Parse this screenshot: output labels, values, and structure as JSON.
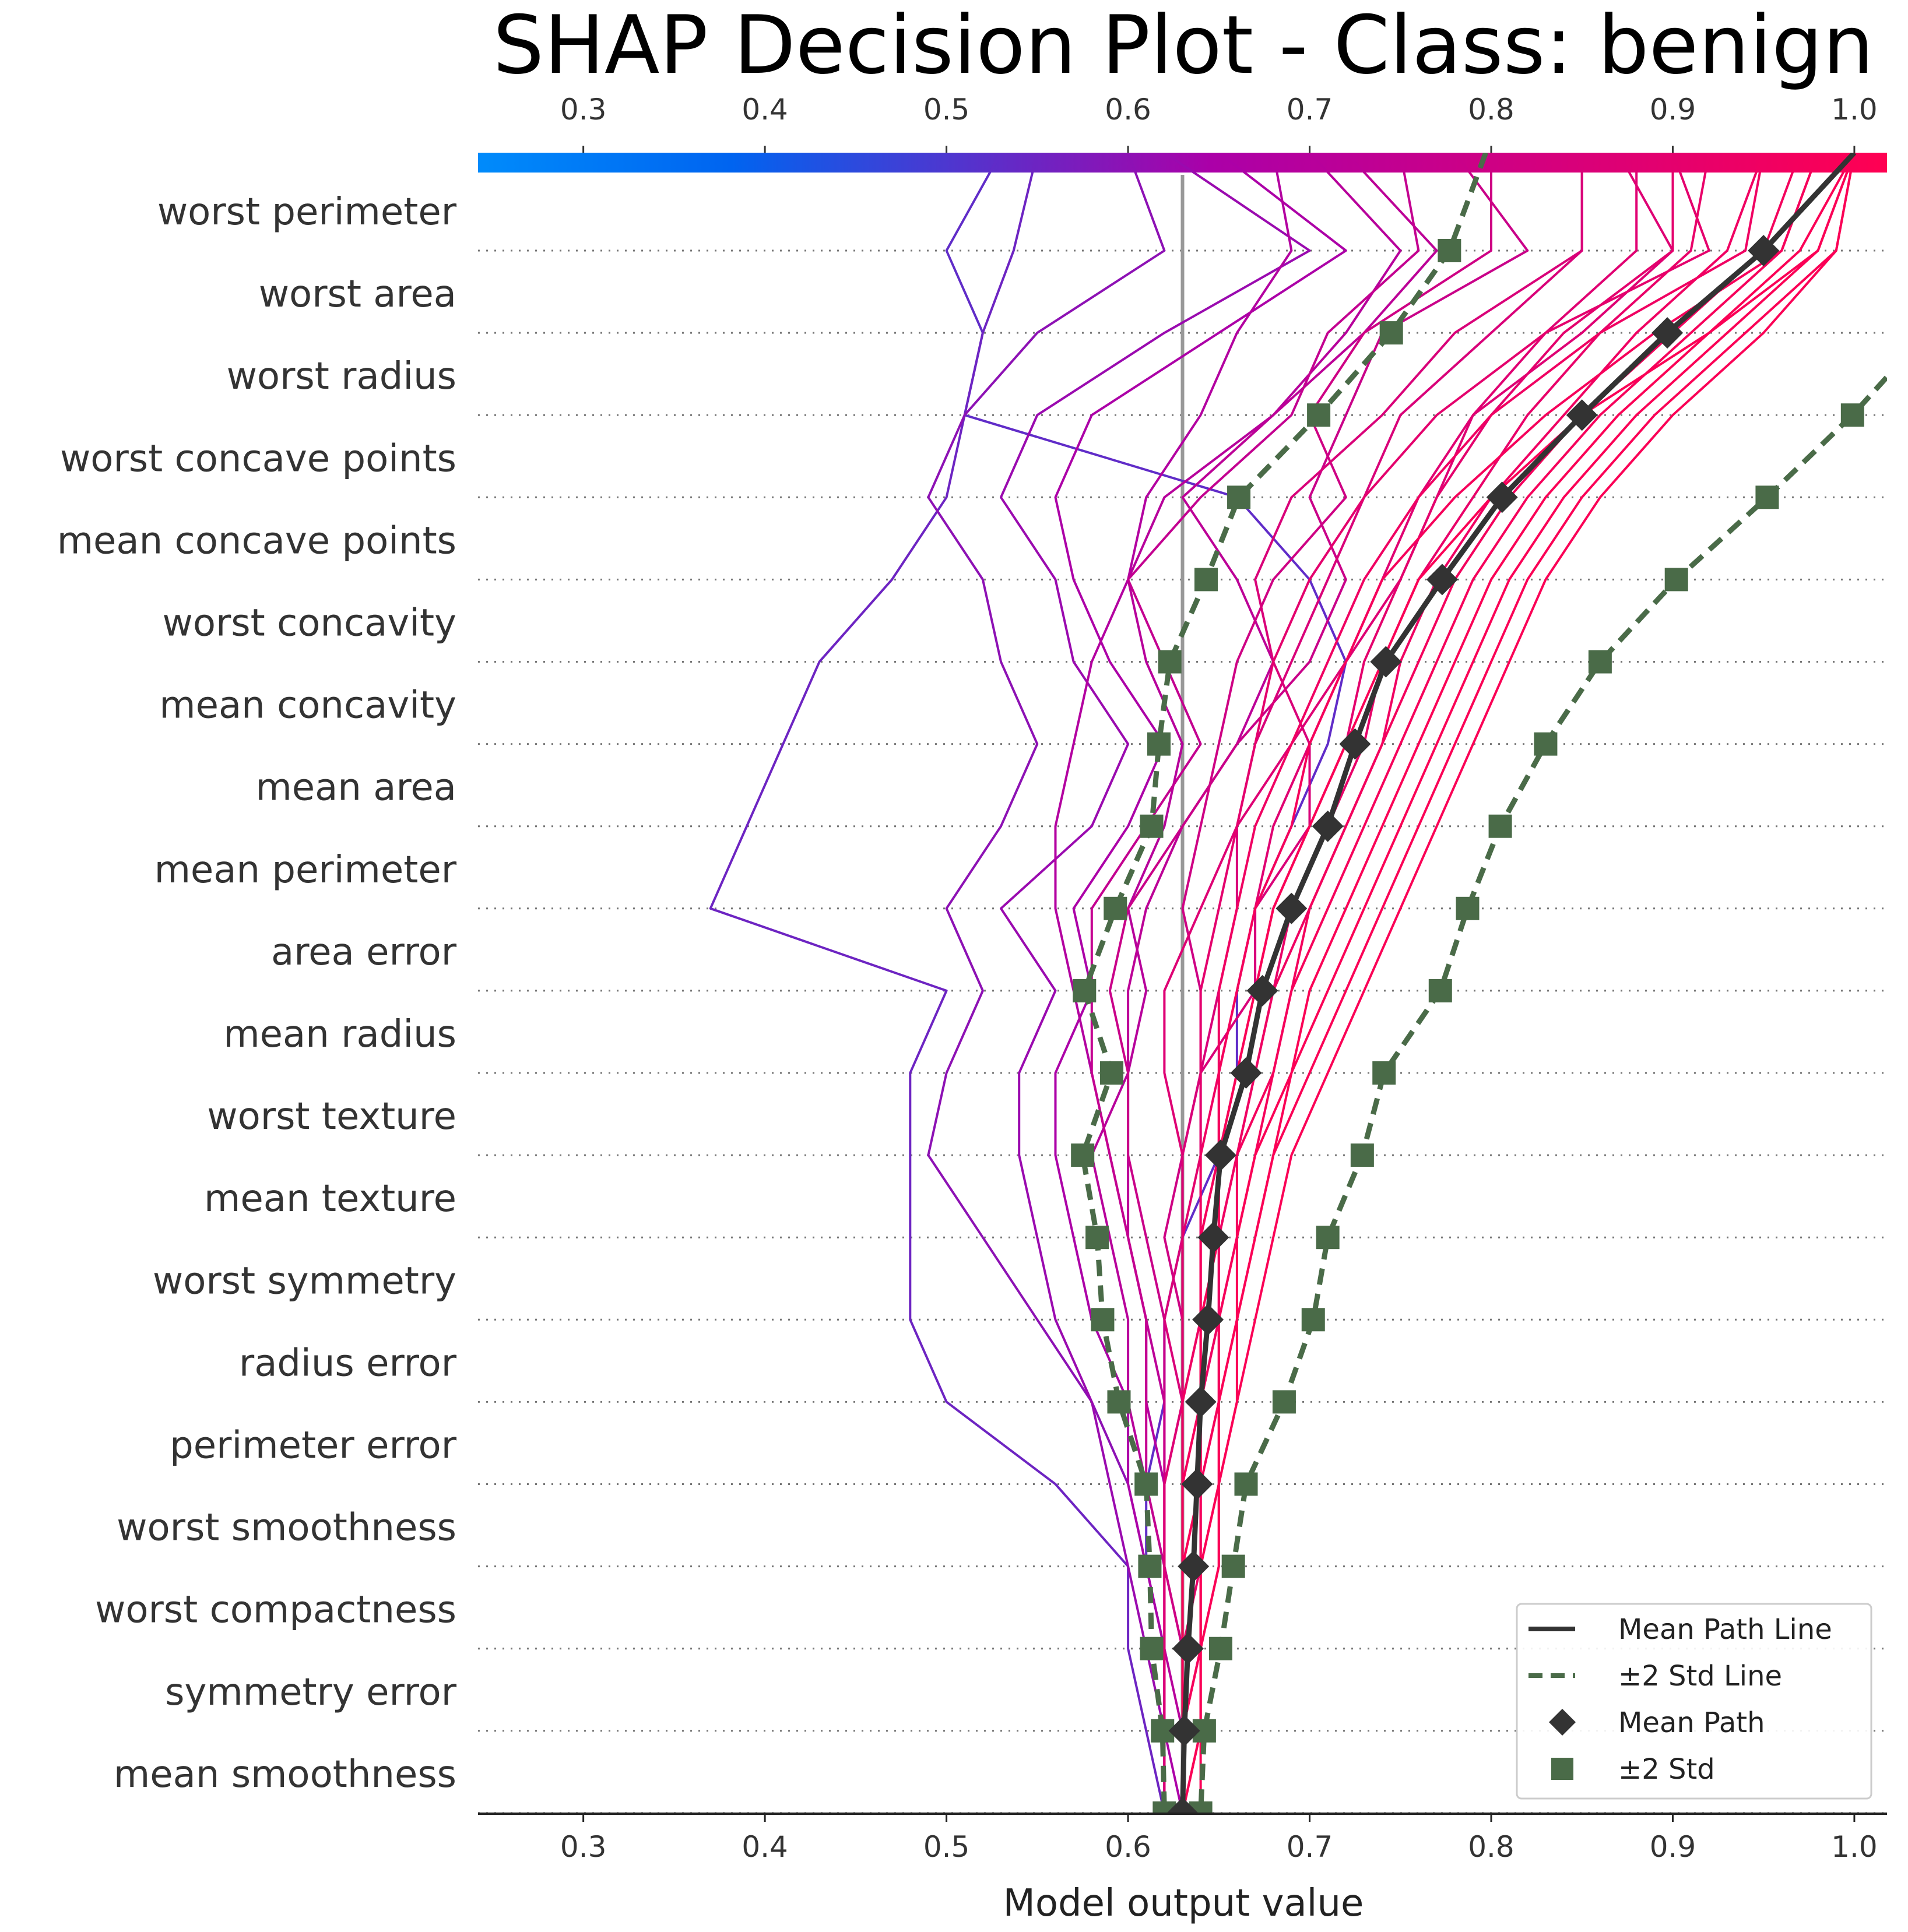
{
  "chart_data": {
    "type": "line",
    "subtype": "shap-decision",
    "title": "SHAP Decision Plot - Class: benign",
    "xlabel": "Model output value",
    "xlim": [
      0.242,
      1.018
    ],
    "xticks": [
      "0.3",
      "0.4",
      "0.5",
      "0.6",
      "0.7",
      "0.8",
      "0.9",
      "1.0"
    ],
    "xtick_values": [
      0.3,
      0.4,
      0.5,
      0.6,
      0.7,
      0.8,
      0.9,
      1.0
    ],
    "base_value": 0.63,
    "colorbar": {
      "position": "top",
      "range": [
        0.242,
        1.018
      ],
      "colors": [
        "#008bfb",
        "#ab00a8",
        "#ff0052"
      ]
    },
    "features": [
      "worst perimeter",
      "worst area",
      "worst radius",
      "worst concave points",
      "mean concave points",
      "worst concavity",
      "mean concavity",
      "mean area",
      "mean perimeter",
      "area error",
      "mean radius",
      "worst texture",
      "mean texture",
      "worst symmetry",
      "radius error",
      "perimeter error",
      "worst smoothness",
      "worst compactness",
      "symmetry error",
      "mean smoothness"
    ],
    "mean_path": [
      0.95,
      0.897,
      0.85,
      0.806,
      0.773,
      0.742,
      0.725,
      0.71,
      0.69,
      0.674,
      0.665,
      0.651,
      0.647,
      0.644,
      0.64,
      0.638,
      0.636,
      0.633,
      0.631,
      0.63
    ],
    "minus_2std": [
      0.777,
      0.745,
      0.705,
      0.661,
      0.643,
      0.623,
      0.617,
      0.613,
      0.593,
      0.576,
      0.591,
      0.575,
      0.583,
      0.586,
      0.595,
      0.61,
      0.612,
      0.613,
      0.619,
      0.62
    ],
    "plus_2std": [
      1.05,
      1.04,
      0.999,
      0.952,
      0.902,
      0.86,
      0.83,
      0.805,
      0.787,
      0.772,
      0.741,
      0.729,
      0.71,
      0.702,
      0.686,
      0.665,
      0.658,
      0.651,
      0.642,
      0.64
    ],
    "legend_position": "lower right",
    "series": [
      {
        "name": "Mean Path Line",
        "style": "solid",
        "color": "#333333"
      },
      {
        "name": "±2 Std Line",
        "style": "dashed",
        "color": "#4a6b48"
      },
      {
        "name": "Mean Path",
        "marker": "diamond",
        "color": "#333333"
      },
      {
        "name": "±2 Std",
        "marker": "square",
        "color": "#4a6b48"
      }
    ],
    "sample_paths": [
      {
        "final": 0.55,
        "values": [
          0.537,
          0.52,
          0.51,
          0.5,
          0.47,
          0.43,
          0.41,
          0.39,
          0.37,
          0.5,
          0.48,
          0.48,
          0.48,
          0.48,
          0.5,
          0.56,
          0.6,
          0.6,
          0.61,
          0.62
        ]
      },
      {
        "final": 0.53,
        "values": [
          0.5,
          0.52,
          0.51,
          0.66,
          0.7,
          0.72,
          0.71,
          0.69,
          0.67,
          0.66,
          0.66,
          0.65,
          0.63,
          0.62,
          0.62,
          0.61,
          0.61,
          0.62,
          0.62,
          0.62
        ]
      },
      {
        "final": 0.6,
        "values": [
          0.62,
          0.55,
          0.51,
          0.49,
          0.52,
          0.53,
          0.55,
          0.53,
          0.5,
          0.52,
          0.5,
          0.49,
          0.52,
          0.55,
          0.58,
          0.6,
          0.61,
          0.62,
          0.62,
          0.62
        ]
      },
      {
        "final": 0.62,
        "values": [
          0.7,
          0.62,
          0.55,
          0.53,
          0.56,
          0.57,
          0.6,
          0.58,
          0.53,
          0.56,
          0.54,
          0.54,
          0.55,
          0.56,
          0.58,
          0.59,
          0.6,
          0.61,
          0.62,
          0.62
        ]
      },
      {
        "final": 0.65,
        "values": [
          0.72,
          0.65,
          0.58,
          0.56,
          0.57,
          0.59,
          0.62,
          0.6,
          0.57,
          0.58,
          0.56,
          0.56,
          0.57,
          0.58,
          0.6,
          0.6,
          0.61,
          0.62,
          0.62,
          0.63
        ]
      },
      {
        "final": 0.7,
        "values": [
          0.75,
          0.72,
          0.68,
          0.62,
          0.6,
          0.61,
          0.63,
          0.62,
          0.6,
          0.61,
          0.6,
          0.58,
          0.59,
          0.6,
          0.6,
          0.61,
          0.62,
          0.62,
          0.63,
          0.63
        ]
      },
      {
        "final": 0.72,
        "values": [
          0.77,
          0.73,
          0.68,
          0.63,
          0.66,
          0.68,
          0.66,
          0.63,
          0.61,
          0.6,
          0.6,
          0.6,
          0.6,
          0.61,
          0.62,
          0.62,
          0.62,
          0.63,
          0.63,
          0.63
        ]
      },
      {
        "final": 0.8,
        "values": [
          0.8,
          0.73,
          0.7,
          0.72,
          0.68,
          0.66,
          0.65,
          0.64,
          0.63,
          0.64,
          0.64,
          0.63,
          0.62,
          0.63,
          0.63,
          0.62,
          0.62,
          0.63,
          0.63,
          0.63
        ]
      },
      {
        "final": 0.85,
        "values": [
          0.85,
          0.78,
          0.74,
          0.69,
          0.67,
          0.68,
          0.7,
          0.7,
          0.67,
          0.67,
          0.64,
          0.63,
          0.63,
          0.62,
          0.63,
          0.63,
          0.63,
          0.63,
          0.63,
          0.63
        ]
      },
      {
        "final": 0.85,
        "values": [
          0.85,
          0.8,
          0.75,
          0.73,
          0.71,
          0.69,
          0.67,
          0.66,
          0.66,
          0.65,
          0.64,
          0.64,
          0.64,
          0.64,
          0.63,
          0.63,
          0.63,
          0.63,
          0.63,
          0.63
        ]
      },
      {
        "final": 0.88,
        "values": [
          0.88,
          0.83,
          0.79,
          0.76,
          0.74,
          0.72,
          0.7,
          0.68,
          0.67,
          0.66,
          0.65,
          0.65,
          0.64,
          0.64,
          0.64,
          0.63,
          0.63,
          0.63,
          0.63,
          0.63
        ]
      },
      {
        "final": 0.9,
        "values": [
          0.9,
          0.84,
          0.8,
          0.77,
          0.75,
          0.73,
          0.72,
          0.7,
          0.68,
          0.67,
          0.66,
          0.65,
          0.65,
          0.64,
          0.64,
          0.64,
          0.63,
          0.63,
          0.63,
          0.63
        ]
      },
      {
        "final": 0.92,
        "values": [
          0.91,
          0.86,
          0.82,
          0.79,
          0.76,
          0.74,
          0.73,
          0.71,
          0.69,
          0.68,
          0.67,
          0.66,
          0.65,
          0.65,
          0.64,
          0.64,
          0.64,
          0.63,
          0.63,
          0.63
        ]
      },
      {
        "final": 0.95,
        "values": [
          0.93,
          0.88,
          0.84,
          0.8,
          0.77,
          0.75,
          0.74,
          0.72,
          0.7,
          0.68,
          0.67,
          0.66,
          0.65,
          0.65,
          0.64,
          0.64,
          0.64,
          0.64,
          0.63,
          0.63
        ]
      },
      {
        "final": 0.97,
        "values": [
          0.95,
          0.9,
          0.85,
          0.81,
          0.78,
          0.76,
          0.74,
          0.72,
          0.7,
          0.69,
          0.68,
          0.66,
          0.66,
          0.65,
          0.65,
          0.64,
          0.64,
          0.64,
          0.63,
          0.63
        ]
      },
      {
        "final": 0.98,
        "values": [
          0.96,
          0.91,
          0.86,
          0.82,
          0.79,
          0.77,
          0.75,
          0.73,
          0.71,
          0.69,
          0.68,
          0.67,
          0.66,
          0.65,
          0.65,
          0.64,
          0.64,
          0.64,
          0.63,
          0.63
        ]
      },
      {
        "final": 1.0,
        "values": [
          0.97,
          0.92,
          0.87,
          0.83,
          0.8,
          0.78,
          0.76,
          0.74,
          0.72,
          0.7,
          0.69,
          0.67,
          0.66,
          0.66,
          0.65,
          0.65,
          0.64,
          0.64,
          0.64,
          0.63
        ]
      },
      {
        "final": 1.0,
        "values": [
          0.98,
          0.93,
          0.88,
          0.84,
          0.81,
          0.79,
          0.77,
          0.75,
          0.73,
          0.71,
          0.69,
          0.68,
          0.67,
          0.66,
          0.65,
          0.65,
          0.64,
          0.64,
          0.64,
          0.63
        ]
      },
      {
        "final": 1.0,
        "values": [
          0.99,
          0.94,
          0.89,
          0.85,
          0.82,
          0.8,
          0.78,
          0.76,
          0.74,
          0.72,
          0.7,
          0.68,
          0.67,
          0.66,
          0.66,
          0.65,
          0.65,
          0.64,
          0.64,
          0.63
        ]
      },
      {
        "final": 1.0,
        "values": [
          0.99,
          0.95,
          0.9,
          0.86,
          0.83,
          0.81,
          0.79,
          0.77,
          0.75,
          0.73,
          0.71,
          0.69,
          0.68,
          0.67,
          0.66,
          0.65,
          0.65,
          0.64,
          0.64,
          0.64
        ]
      },
      {
        "final": 1.0,
        "values": [
          0.98,
          0.92,
          0.85,
          0.8,
          0.76,
          0.74,
          0.72,
          0.7,
          0.68,
          0.67,
          0.66,
          0.65,
          0.65,
          0.64,
          0.64,
          0.64,
          0.63,
          0.63,
          0.63,
          0.63
        ]
      },
      {
        "final": 0.98,
        "values": [
          0.96,
          0.89,
          0.83,
          0.78,
          0.74,
          0.72,
          0.7,
          0.69,
          0.67,
          0.66,
          0.65,
          0.65,
          0.64,
          0.64,
          0.64,
          0.63,
          0.63,
          0.63,
          0.63,
          0.63
        ]
      },
      {
        "final": 0.95,
        "values": [
          0.94,
          0.86,
          0.8,
          0.76,
          0.73,
          0.71,
          0.69,
          0.67,
          0.66,
          0.65,
          0.65,
          0.64,
          0.64,
          0.64,
          0.63,
          0.63,
          0.63,
          0.63,
          0.63,
          0.63
        ]
      },
      {
        "final": 0.9,
        "values": [
          0.92,
          0.83,
          0.77,
          0.73,
          0.7,
          0.68,
          0.67,
          0.66,
          0.65,
          0.64,
          0.64,
          0.64,
          0.63,
          0.63,
          0.63,
          0.63,
          0.63,
          0.63,
          0.63,
          0.63
        ]
      },
      {
        "final": 0.87,
        "values": [
          0.9,
          0.85,
          0.79,
          0.77,
          0.75,
          0.72,
          0.69,
          0.66,
          0.64,
          0.62,
          0.62,
          0.63,
          0.63,
          0.63,
          0.63,
          0.62,
          0.62,
          0.62,
          0.62,
          0.62
        ]
      },
      {
        "final": 0.78,
        "values": [
          0.82,
          0.74,
          0.72,
          0.7,
          0.72,
          0.7,
          0.66,
          0.63,
          0.6,
          0.59,
          0.6,
          0.6,
          0.61,
          0.62,
          0.62,
          0.62,
          0.62,
          0.62,
          0.62,
          0.62
        ]
      },
      {
        "final": 0.75,
        "values": [
          0.76,
          0.71,
          0.69,
          0.64,
          0.6,
          0.62,
          0.64,
          0.61,
          0.58,
          0.58,
          0.58,
          0.59,
          0.6,
          0.61,
          0.61,
          0.61,
          0.62,
          0.62,
          0.62,
          0.62
        ]
      },
      {
        "final": 0.68,
        "values": [
          0.69,
          0.66,
          0.64,
          0.61,
          0.6,
          0.58,
          0.57,
          0.56,
          0.56,
          0.57,
          0.58,
          0.59,
          0.6,
          0.61,
          0.61,
          0.62,
          0.62,
          0.62,
          0.62,
          0.62
        ]
      }
    ]
  }
}
